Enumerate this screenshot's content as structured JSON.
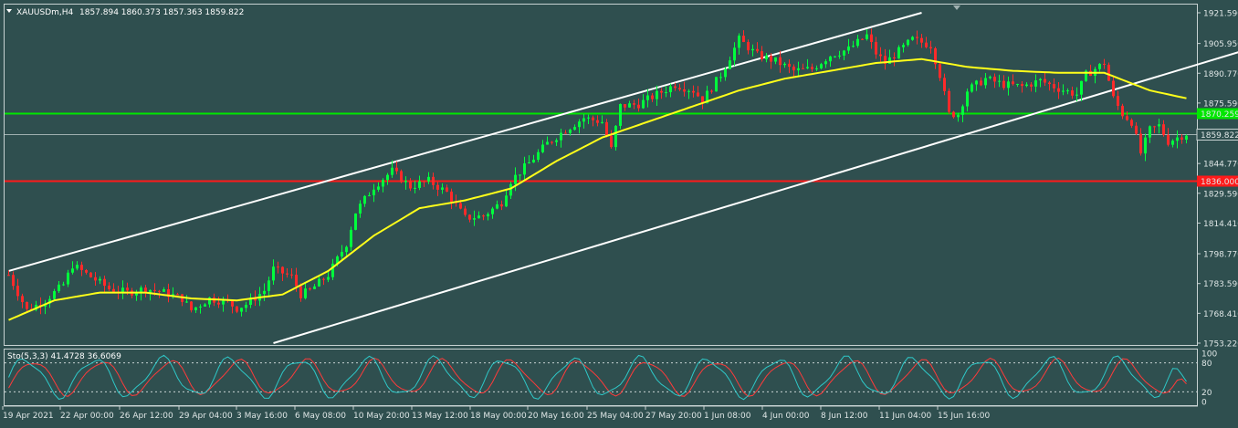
{
  "header": {
    "symbol": "XAUUSDm,H4",
    "ohlc": "1857.894 1860.373 1857.363 1859.822"
  },
  "colors": {
    "background": "#2f4f4f",
    "bull_candle": "#00ff3c",
    "bear_candle": "#ff2a2a",
    "moving_average": "#ffff1a",
    "channel": "#ffffff",
    "green_level": "#00e600",
    "red_level": "#ff1a1a",
    "stoch_main": "#2ec8c8",
    "stoch_signal": "#ff3a3a"
  },
  "chart_data": [
    {
      "type": "candlestick",
      "title": "XAUUSDm,H4",
      "y_ticks": [
        "1921.590",
        "1905.950",
        "1890.770",
        "1875.590",
        "1844.770",
        "1829.590",
        "1814.410",
        "1798.770",
        "1783.590",
        "1768.410",
        "1753.220"
      ],
      "ylim": [
        1753.22,
        1921.59
      ],
      "x_ticks": [
        "19 Apr 2021",
        "22 Apr 00:00",
        "26 Apr 12:00",
        "29 Apr 04:00",
        "3 May 16:00",
        "6 May 08:00",
        "10 May 20:00",
        "13 May 12:00",
        "18 May 00:00",
        "20 May 16:00",
        "25 May 04:00",
        "27 May 20:00",
        "1 Jun 08:00",
        "4 Jun 00:00",
        "8 Jun 12:00",
        "11 Jun 04:00",
        "15 Jun 16:00"
      ],
      "price_path": [
        [
          0,
          1788
        ],
        [
          4,
          1770
        ],
        [
          8,
          1775
        ],
        [
          12,
          1783
        ],
        [
          14,
          1793
        ],
        [
          18,
          1787
        ],
        [
          22,
          1781
        ],
        [
          26,
          1779
        ],
        [
          30,
          1781
        ],
        [
          34,
          1779
        ],
        [
          38,
          1776
        ],
        [
          40,
          1770
        ],
        [
          44,
          1776
        ],
        [
          48,
          1774
        ],
        [
          50,
          1771
        ],
        [
          52,
          1773
        ],
        [
          56,
          1780
        ],
        [
          58,
          1791
        ],
        [
          62,
          1787
        ],
        [
          64,
          1778
        ],
        [
          66,
          1780
        ],
        [
          70,
          1788
        ],
        [
          74,
          1804
        ],
        [
          76,
          1820
        ],
        [
          80,
          1833
        ],
        [
          84,
          1841
        ],
        [
          88,
          1833
        ],
        [
          92,
          1836
        ],
        [
          96,
          1830
        ],
        [
          100,
          1817
        ],
        [
          104,
          1818
        ],
        [
          108,
          1825
        ],
        [
          110,
          1836
        ],
        [
          114,
          1845
        ],
        [
          118,
          1855
        ],
        [
          122,
          1862
        ],
        [
          126,
          1868
        ],
        [
          130,
          1866
        ],
        [
          132,
          1852
        ],
        [
          134,
          1874
        ],
        [
          138,
          1875
        ],
        [
          142,
          1880
        ],
        [
          146,
          1885
        ],
        [
          150,
          1882
        ],
        [
          152,
          1877
        ],
        [
          156,
          1890
        ],
        [
          160,
          1908
        ],
        [
          164,
          1900
        ],
        [
          168,
          1897
        ],
        [
          172,
          1892
        ],
        [
          176,
          1893
        ],
        [
          180,
          1900
        ],
        [
          184,
          1903
        ],
        [
          188,
          1910
        ],
        [
          190,
          1901
        ],
        [
          192,
          1896
        ],
        [
          196,
          1904
        ],
        [
          198,
          1908
        ],
        [
          202,
          1905
        ],
        [
          204,
          1890
        ],
        [
          206,
          1870
        ],
        [
          208,
          1870
        ],
        [
          210,
          1882
        ],
        [
          214,
          1888
        ],
        [
          218,
          1885
        ],
        [
          222,
          1884
        ],
        [
          226,
          1887
        ],
        [
          230,
          1883
        ],
        [
          234,
          1880
        ],
        [
          236,
          1890
        ],
        [
          240,
          1896
        ],
        [
          242,
          1878
        ],
        [
          244,
          1870
        ],
        [
          246,
          1866
        ],
        [
          248,
          1850
        ],
        [
          250,
          1862
        ],
        [
          252,
          1864
        ],
        [
          254,
          1856
        ],
        [
          256,
          1858
        ],
        [
          258,
          1860
        ]
      ],
      "moving_average": [
        [
          0,
          1765
        ],
        [
          10,
          1775
        ],
        [
          20,
          1779
        ],
        [
          30,
          1779
        ],
        [
          40,
          1776
        ],
        [
          50,
          1775
        ],
        [
          60,
          1778
        ],
        [
          70,
          1790
        ],
        [
          80,
          1808
        ],
        [
          90,
          1822
        ],
        [
          100,
          1826
        ],
        [
          110,
          1832
        ],
        [
          120,
          1846
        ],
        [
          130,
          1858
        ],
        [
          140,
          1866
        ],
        [
          150,
          1874
        ],
        [
          160,
          1882
        ],
        [
          170,
          1888
        ],
        [
          180,
          1892
        ],
        [
          190,
          1896
        ],
        [
          200,
          1898
        ],
        [
          210,
          1894
        ],
        [
          220,
          1892
        ],
        [
          230,
          1891
        ],
        [
          240,
          1891
        ],
        [
          250,
          1882
        ],
        [
          258,
          1878
        ]
      ],
      "channel_lines": [
        {
          "from": [
            0,
            1790
          ],
          "to": [
            200,
            1921.59
          ]
        },
        {
          "from": [
            58,
            1753.22
          ],
          "to": [
            298,
            1921.59
          ]
        }
      ],
      "horizontal_levels": [
        {
          "label": "1870.259",
          "value": 1870.259,
          "color": "green"
        },
        {
          "label": "1836.000",
          "value": 1836.0,
          "color": "red"
        },
        {
          "label": "1859.822",
          "value": 1859.822,
          "color": "gray"
        }
      ],
      "last_price": "1859.822"
    },
    {
      "type": "line",
      "title": "Sto(5,3,3) 41.4728 36.6069",
      "indicator": "Stochastic",
      "main_value": 41.4728,
      "signal_value": 36.6069,
      "y_ticks": [
        "100",
        "80",
        "20",
        "0"
      ],
      "ylim": [
        0,
        100
      ],
      "levels": [
        80,
        20
      ]
    }
  ]
}
